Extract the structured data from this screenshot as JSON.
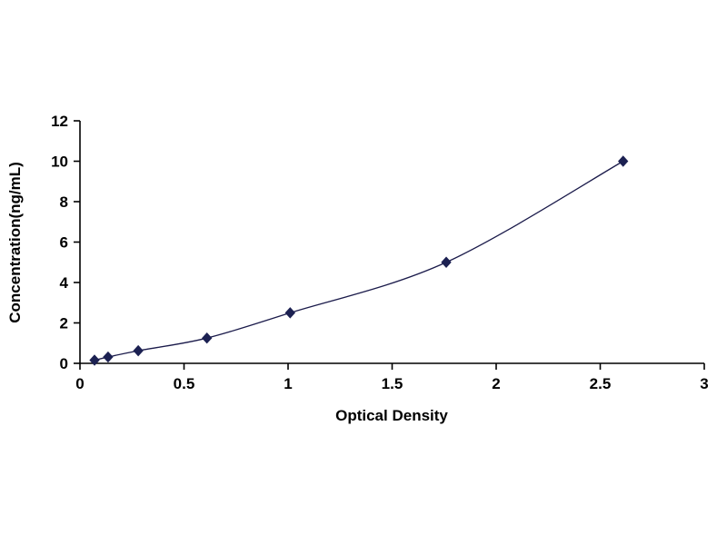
{
  "figure": {
    "background": "#ffffff",
    "axis_color": "#000000",
    "line_color": "#1b1b4b",
    "marker_color": "#1c2152",
    "marker_shape": "diamond"
  },
  "chart_data": {
    "type": "line",
    "title": "",
    "xlabel": "Optical Density",
    "ylabel": "Concentration(ng/mL)",
    "x": [
      0.07,
      0.135,
      0.28,
      0.61,
      1.01,
      1.76,
      2.61
    ],
    "y": [
      0.156,
      0.312,
      0.625,
      1.25,
      2.5,
      5.0,
      10.0
    ],
    "xlim": [
      0,
      3
    ],
    "ylim": [
      0,
      12
    ],
    "x_ticks": [
      0,
      0.5,
      1,
      1.5,
      2,
      2.5,
      3
    ],
    "x_tick_labels": [
      "0",
      "0.5",
      "1",
      "1.5",
      "2",
      "2.5",
      "3"
    ],
    "y_ticks": [
      0,
      2,
      4,
      6,
      8,
      10,
      12
    ],
    "y_tick_labels": [
      "0",
      "2",
      "4",
      "6",
      "8",
      "10",
      "12"
    ],
    "grid": false,
    "legend": "none"
  }
}
